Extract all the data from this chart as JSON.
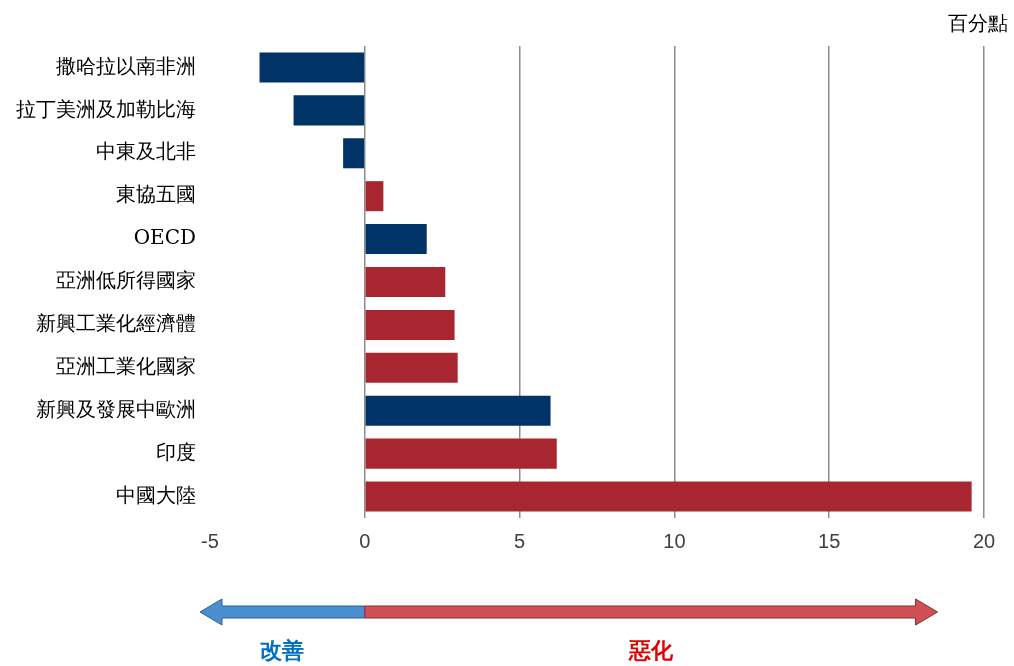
{
  "chart_data": {
    "type": "bar",
    "orientation": "horizontal",
    "categories": [
      "撒哈拉以南非洲",
      "拉丁美洲及加勒比海",
      "中東及北非",
      "東協五國",
      "OECD",
      "亞洲低所得國家",
      "新興工業化經濟體",
      "亞洲工業化國家",
      "新興及發展中歐洲",
      "印度",
      "中國大陸"
    ],
    "values": [
      -3.4,
      -2.3,
      -0.7,
      0.6,
      2.0,
      2.6,
      2.9,
      3.0,
      6.0,
      6.2,
      19.6
    ],
    "colors": [
      "#003366",
      "#003366",
      "#003366",
      "#a8262f",
      "#003366",
      "#a8262f",
      "#a8262f",
      "#a8262f",
      "#003366",
      "#a8262f",
      "#a8262f"
    ],
    "xlim": [
      -5,
      20
    ],
    "xticks": [
      -5,
      0,
      5,
      10,
      15,
      20
    ],
    "grid": "x",
    "legend": false,
    "annotations": [
      "百分點",
      "改善",
      "惡化"
    ]
  }
}
